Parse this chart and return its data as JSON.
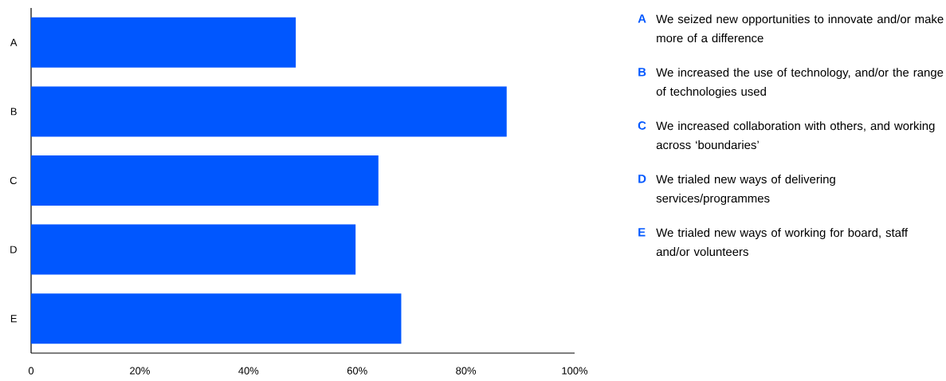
{
  "chart_data": {
    "type": "bar",
    "orientation": "horizontal",
    "categories": [
      "A",
      "B",
      "C",
      "D",
      "E"
    ],
    "values": [
      48.7,
      87.5,
      63.9,
      59.7,
      68.1
    ],
    "color": "#0057ff",
    "xlim": [
      0,
      100
    ],
    "xticks": [
      0,
      {
        "value": 20,
        "label": "20%"
      },
      {
        "value": 40,
        "label": "40%"
      },
      {
        "value": 60,
        "label": "60%"
      },
      {
        "value": 80,
        "label": "80%"
      },
      {
        "value": 100,
        "label": "100%"
      }
    ],
    "annotations": [
      "We seized new opportunities to innovate and/or make more of a difference",
      "We increased the use of technology, and/or the range of technologies used",
      "We increased collaboration with others, and working across ‘boundaries’",
      "We trialed new ways of delivering services/programmes",
      "We trialed new ways of working for board, staff and/or volunteers"
    ]
  }
}
